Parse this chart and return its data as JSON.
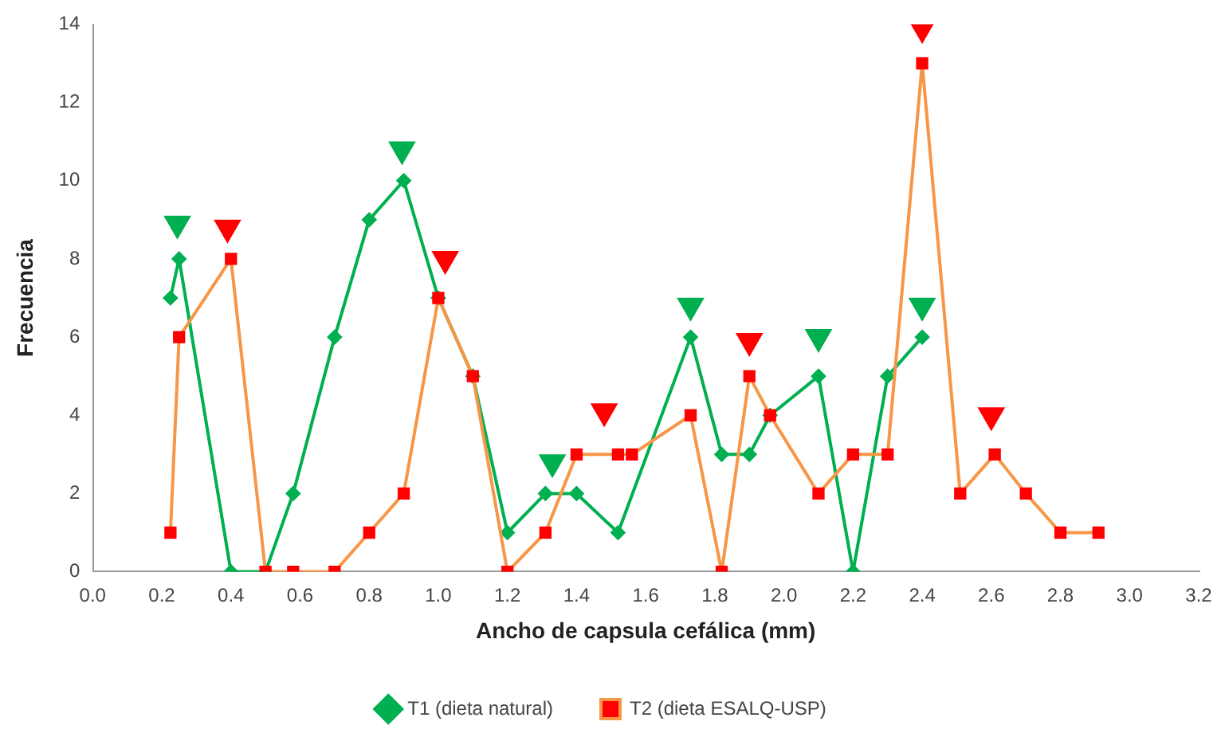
{
  "chart_data": {
    "type": "line",
    "xlabel": "Ancho de capsula cefálica (mm)",
    "ylabel": "Frecuencia",
    "xlim": [
      0,
      3.2
    ],
    "ylim": [
      0,
      14
    ],
    "xticks": [
      {
        "value": 0,
        "label": "0.0"
      },
      {
        "value": 0.2,
        "label": "0.2"
      },
      {
        "value": 0.4,
        "label": "0.4"
      },
      {
        "value": 0.6,
        "label": "0.6"
      },
      {
        "value": 0.8,
        "label": "0.8"
      },
      {
        "value": 1,
        "label": "1.0"
      },
      {
        "value": 1.2,
        "label": "1.2"
      },
      {
        "value": 1.4,
        "label": "1.4"
      },
      {
        "value": 1.6,
        "label": "1.6"
      },
      {
        "value": 1.8,
        "label": "1.8"
      },
      {
        "value": 2,
        "label": "2.0"
      },
      {
        "value": 2.2,
        "label": "2.2"
      },
      {
        "value": 2.4,
        "label": "2.4"
      },
      {
        "value": 2.6,
        "label": "2.6"
      },
      {
        "value": 2.8,
        "label": "2.8"
      },
      {
        "value": 3,
        "label": "3.0"
      },
      {
        "value": 3.2,
        "label": "3.2"
      }
    ],
    "yticks": [
      0,
      2,
      4,
      6,
      8,
      10,
      12,
      14
    ],
    "grid": false,
    "legend": "bottom",
    "series": [
      {
        "name": "T1 (dieta natural)",
        "type": "line",
        "color": "#00b050",
        "marker": "diamond",
        "x": [
          0.225,
          0.25,
          0.4,
          0.5,
          0.58,
          0.7,
          0.8,
          0.9,
          1.0,
          1.1,
          1.2,
          1.31,
          1.4,
          1.52,
          1.73,
          1.82,
          1.9,
          1.96,
          2.1,
          2.2,
          2.3,
          2.4
        ],
        "values": [
          7,
          8,
          0,
          0,
          2,
          6,
          9,
          10,
          7,
          5,
          1,
          2,
          2,
          1,
          6,
          3,
          3,
          4,
          5,
          0,
          5,
          6
        ]
      },
      {
        "name": "T2 (dieta ESALQ-USP)",
        "type": "line",
        "color": "#f79646",
        "marker": "square",
        "colors": [
          "#ff0000",
          "#ff0000",
          "#ff0000",
          "#ff0000",
          "#ff0000",
          "#ff0000",
          "#ff0000",
          "#ff0000",
          "#ff0000",
          "#ff0000",
          "#ff0000",
          "#ff0000",
          "#ff0000",
          "#ff0000",
          "#ff0000",
          "#ff0000",
          "#ff0000",
          "#ff0000",
          "#ff0000",
          "#ff0000",
          "#ff0000",
          "#ff0000",
          "#ff0000",
          "#ff0000",
          "#ff0000",
          "#ff0000",
          "#ff0000",
          "#ff0000"
        ],
        "x": [
          0.225,
          0.25,
          0.4,
          0.5,
          0.58,
          0.7,
          0.8,
          0.9,
          1.0,
          1.1,
          1.2,
          1.31,
          1.4,
          1.52,
          1.56,
          1.73,
          1.82,
          1.9,
          1.96,
          2.1,
          2.2,
          2.3,
          2.4,
          2.51,
          2.61,
          2.7,
          2.8,
          2.91
        ],
        "values": [
          1,
          6,
          8,
          0,
          0,
          0,
          1,
          2,
          7,
          5,
          0,
          1,
          3,
          3,
          3,
          4,
          0,
          5,
          4,
          2,
          3,
          3,
          13,
          2,
          3,
          2,
          1,
          1
        ]
      },
      {
        "type": "scatter",
        "color": "#00b050",
        "marker": "triangle",
        "x": [
          0.245,
          0.895,
          1.33,
          1.73,
          2.1,
          2.4
        ],
        "values": [
          8.9,
          10.8,
          2.8,
          6.8,
          6.0,
          6.8
        ]
      },
      {
        "type": "scatter",
        "color": "#ff0000",
        "marker": "triangle",
        "x": [
          0.39,
          1.02,
          1.48,
          1.9,
          2.4,
          2.6
        ],
        "values": [
          8.8,
          8.0,
          4.1,
          5.9,
          13.9,
          4.0
        ]
      }
    ]
  }
}
